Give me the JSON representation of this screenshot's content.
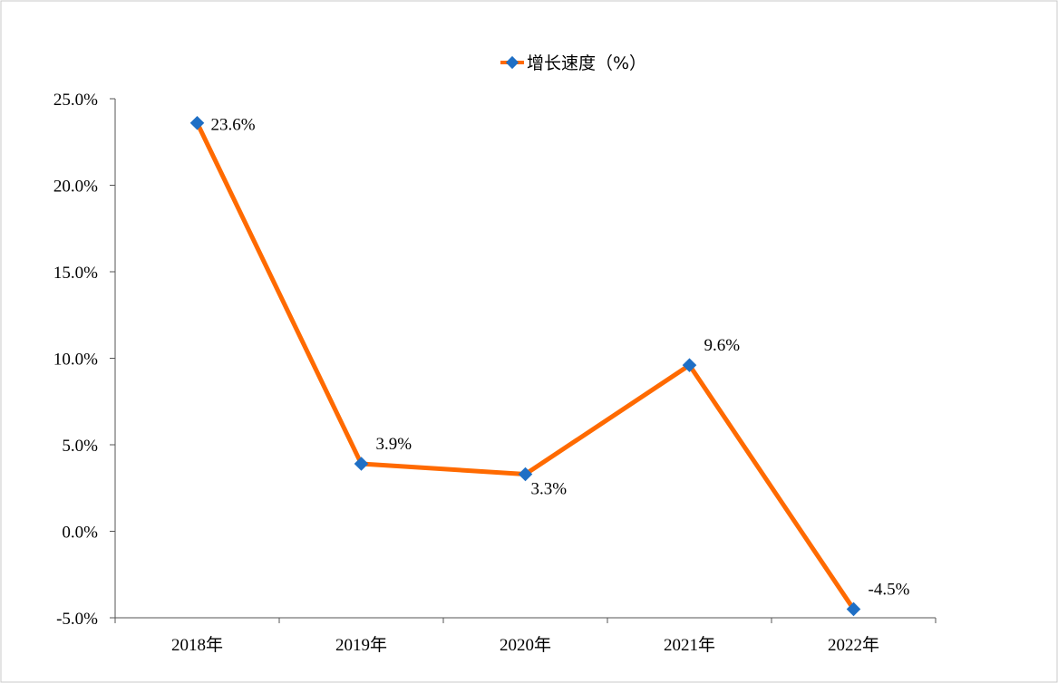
{
  "chart_data": {
    "type": "line",
    "categories": [
      "2018年",
      "2019年",
      "2020年",
      "2021年",
      "2022年"
    ],
    "series": [
      {
        "name": "增长速度（%）",
        "values": [
          23.6,
          3.9,
          3.3,
          9.6,
          -4.5
        ],
        "data_labels": [
          "23.6%",
          "3.9%",
          "3.3%",
          "9.6%",
          "-4.5%"
        ],
        "line_color": "#FF6A00",
        "marker_color": "#1F6FC5",
        "marker": "diamond"
      }
    ],
    "yticks": [
      25,
      20,
      15,
      10,
      5,
      0,
      -5
    ],
    "ytick_labels": [
      "25.0%",
      "20.0%",
      "15.0%",
      "10.0%",
      "5.0%",
      "0.0%",
      "-5.0%"
    ],
    "ylim": [
      -5,
      25
    ],
    "grid": false,
    "legend_position": "top-center",
    "xlabel": "",
    "ylabel": ""
  }
}
